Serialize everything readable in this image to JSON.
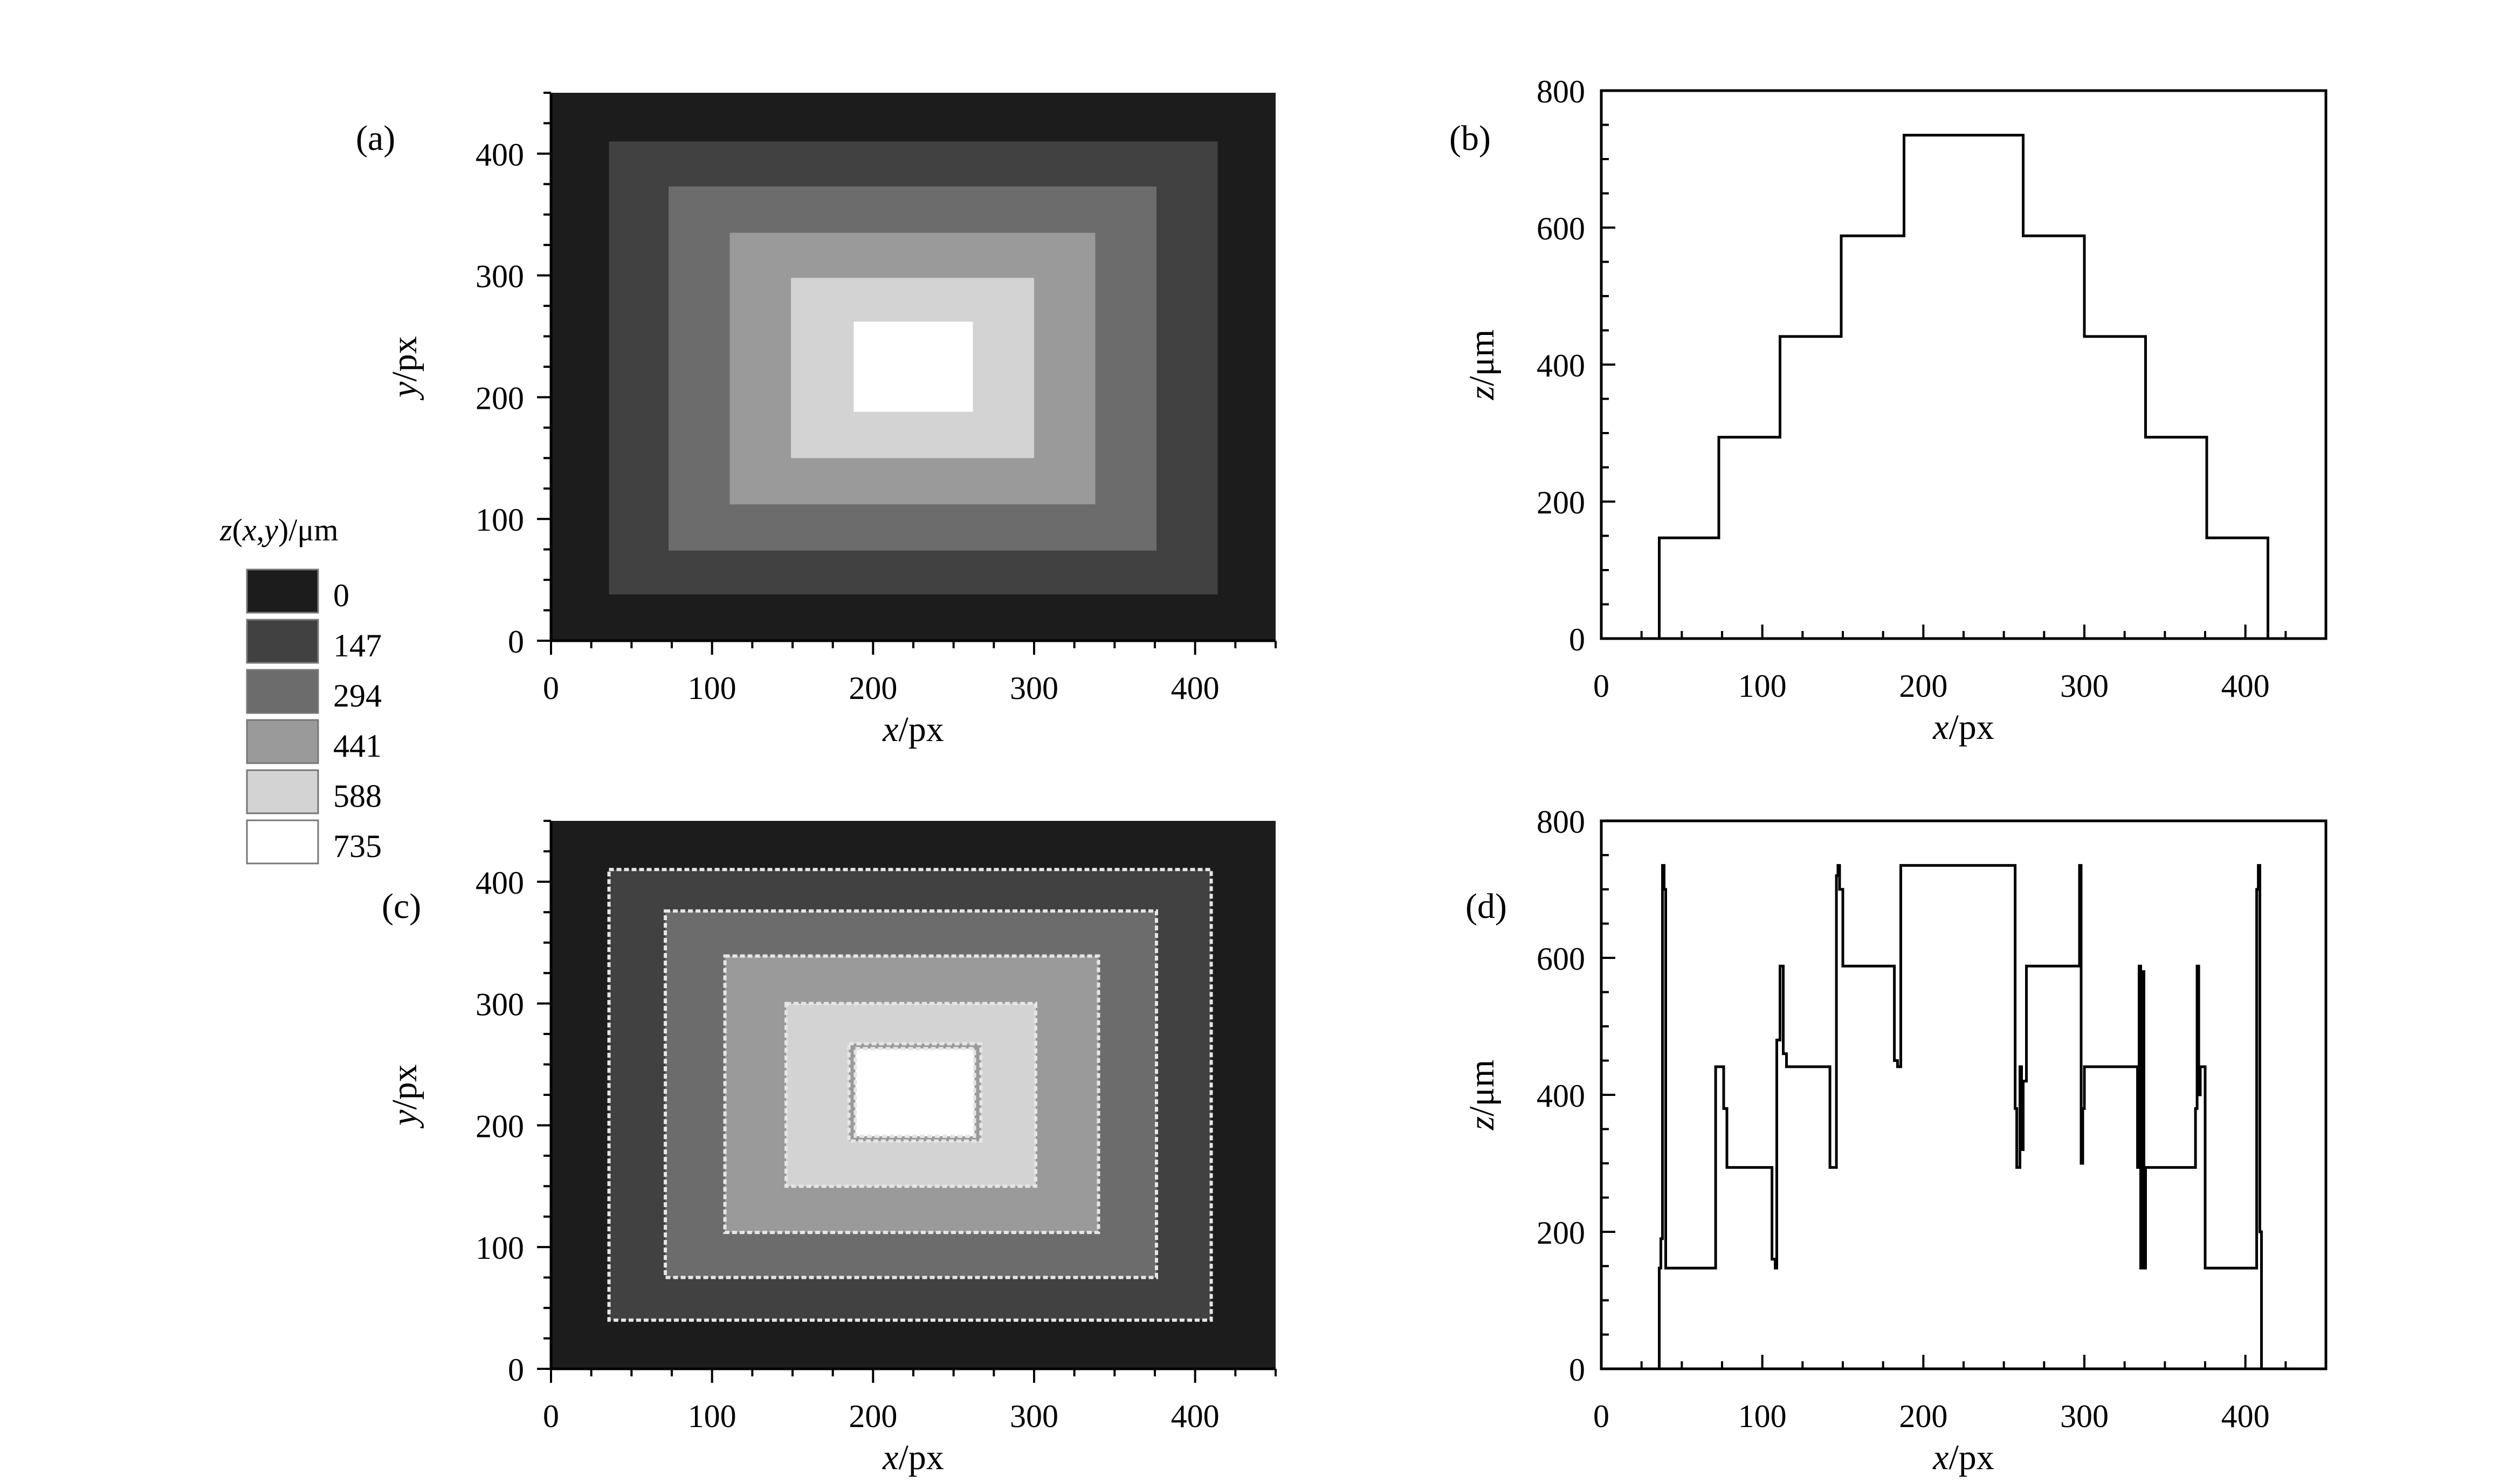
{
  "chart_data": [
    {
      "id": "a",
      "panel_label": "(a)",
      "type": "heatmap",
      "title": "",
      "xlabel": "x/px",
      "ylabel": "y/px",
      "xlim": [
        0,
        450
      ],
      "ylim": [
        0,
        450
      ],
      "xticks": [
        0,
        100,
        200,
        300,
        400
      ],
      "yticks": [
        0,
        100,
        200,
        300,
        400
      ],
      "background_value": 0,
      "rectangles": [
        {
          "x0": 36,
          "x1": 414,
          "y0": 38,
          "y1": 410,
          "value": 147
        },
        {
          "x0": 73,
          "x1": 376,
          "y0": 74,
          "y1": 373,
          "value": 294
        },
        {
          "x0": 111,
          "x1": 338,
          "y0": 112,
          "y1": 335,
          "value": 441
        },
        {
          "x0": 149,
          "x1": 300,
          "y0": 150,
          "y1": 298,
          "value": 588
        },
        {
          "x0": 188,
          "x1": 262,
          "y0": 188,
          "y1": 262,
          "value": 735
        }
      ]
    },
    {
      "id": "b",
      "panel_label": "(b)",
      "type": "line",
      "title": "",
      "xlabel": "x/px",
      "ylabel": "z/μm",
      "xlim": [
        0,
        450
      ],
      "ylim": [
        0,
        800
      ],
      "xticks": [
        0,
        100,
        200,
        300,
        400
      ],
      "yticks": [
        0,
        200,
        400,
        600,
        800
      ],
      "series": [
        {
          "name": "",
          "x": [
            36,
            36,
            73,
            73,
            111,
            111,
            149,
            149,
            188,
            188,
            262,
            262,
            300,
            300,
            338,
            338,
            376,
            376,
            414,
            414
          ],
          "y": [
            0,
            147,
            147,
            294,
            294,
            441,
            441,
            588,
            588,
            735,
            735,
            588,
            588,
            441,
            441,
            294,
            294,
            147,
            147,
            0
          ]
        }
      ]
    },
    {
      "id": "c",
      "panel_label": "(c)",
      "type": "heatmap",
      "title": "",
      "xlabel": "x/px",
      "ylabel": "y/px",
      "xlim": [
        0,
        450
      ],
      "ylim": [
        0,
        450
      ],
      "xticks": [
        0,
        100,
        200,
        300,
        400
      ],
      "yticks": [
        0,
        100,
        200,
        300,
        400
      ],
      "background_value": 0,
      "rectangles": [
        {
          "x0": 36,
          "x1": 410,
          "y0": 40,
          "y1": 410,
          "value": 147
        },
        {
          "x0": 71,
          "x1": 376,
          "y0": 75,
          "y1": 376,
          "value": 294
        },
        {
          "x0": 108,
          "x1": 340,
          "y0": 112,
          "y1": 339,
          "value": 441
        },
        {
          "x0": 146,
          "x1": 301,
          "y0": 150,
          "y1": 300,
          "value": 588
        },
        {
          "x0": 185,
          "x1": 267,
          "y0": 187,
          "y1": 267,
          "value": 441
        },
        {
          "x0": 189,
          "x1": 263,
          "y0": 191,
          "y1": 263,
          "value": 735
        }
      ],
      "edge_noise_value": 735
    },
    {
      "id": "d",
      "panel_label": "(d)",
      "type": "line",
      "title": "",
      "xlabel": "x/px",
      "ylabel": "z/μm",
      "xlim": [
        0,
        450
      ],
      "ylim": [
        0,
        800
      ],
      "xticks": [
        0,
        100,
        200,
        300,
        400
      ],
      "yticks": [
        0,
        200,
        400,
        600,
        800
      ],
      "series": [
        {
          "name": "",
          "x": [
            36,
            36,
            37,
            37,
            38,
            38,
            39,
            39,
            40,
            40,
            41,
            41,
            71,
            71,
            75,
            75,
            76,
            76,
            78,
            78,
            106,
            106,
            108,
            108,
            109,
            109,
            111,
            111,
            113,
            113,
            115,
            115,
            140,
            140,
            142,
            142,
            146,
            146,
            147,
            147,
            148,
            148,
            150,
            150,
            151,
            151,
            182,
            182,
            184,
            184,
            186,
            186,
            189,
            189,
            257,
            257,
            258,
            258,
            260,
            260,
            261,
            261,
            262,
            262,
            264,
            264,
            266,
            266,
            267,
            267,
            297,
            297,
            298,
            298,
            299,
            299,
            300,
            300,
            302,
            302,
            333,
            333,
            334,
            334,
            335,
            335,
            336,
            336,
            337,
            337,
            338,
            338,
            339,
            339,
            340,
            340,
            369,
            369,
            370,
            370,
            371,
            371,
            372,
            372,
            375,
            375,
            376,
            376,
            377,
            377,
            406,
            406,
            407,
            407,
            408,
            408,
            409,
            409,
            410,
            410
          ],
          "y": [
            0,
            147,
            147,
            190,
            190,
            735,
            735,
            700,
            700,
            147,
            147,
            147,
            147,
            441,
            441,
            441,
            441,
            380,
            380,
            294,
            294,
            160,
            160,
            147,
            147,
            480,
            480,
            588,
            588,
            460,
            460,
            441,
            441,
            441,
            441,
            294,
            294,
            720,
            720,
            735,
            735,
            700,
            700,
            588,
            588,
            588,
            588,
            450,
            450,
            441,
            441,
            735,
            735,
            735,
            735,
            380,
            380,
            294,
            294,
            441,
            441,
            320,
            320,
            420,
            420,
            588,
            588,
            588,
            588,
            588,
            588,
            735,
            735,
            300,
            300,
            380,
            380,
            441,
            441,
            441,
            441,
            294,
            294,
            588,
            588,
            147,
            147,
            580,
            580,
            147,
            147,
            294,
            294,
            294,
            294,
            294,
            294,
            380,
            380,
            588,
            588,
            400,
            400,
            441,
            441,
            147,
            147,
            147,
            147,
            147,
            147,
            147,
            147,
            700,
            700,
            735,
            735,
            200,
            200,
            0
          ]
        }
      ]
    }
  ],
  "legend": {
    "title": "z(x,y)/μm",
    "entries": [
      {
        "value": 0,
        "label": "0",
        "color": "#1c1c1c"
      },
      {
        "value": 147,
        "label": "147",
        "color": "#414141"
      },
      {
        "value": 294,
        "label": "294",
        "color": "#6c6c6c"
      },
      {
        "value": 441,
        "label": "441",
        "color": "#9a9a9a"
      },
      {
        "value": 588,
        "label": "588",
        "color": "#d3d3d3"
      },
      {
        "value": 735,
        "label": "735",
        "color": "#ffffff"
      }
    ]
  },
  "line_color": "#000000"
}
